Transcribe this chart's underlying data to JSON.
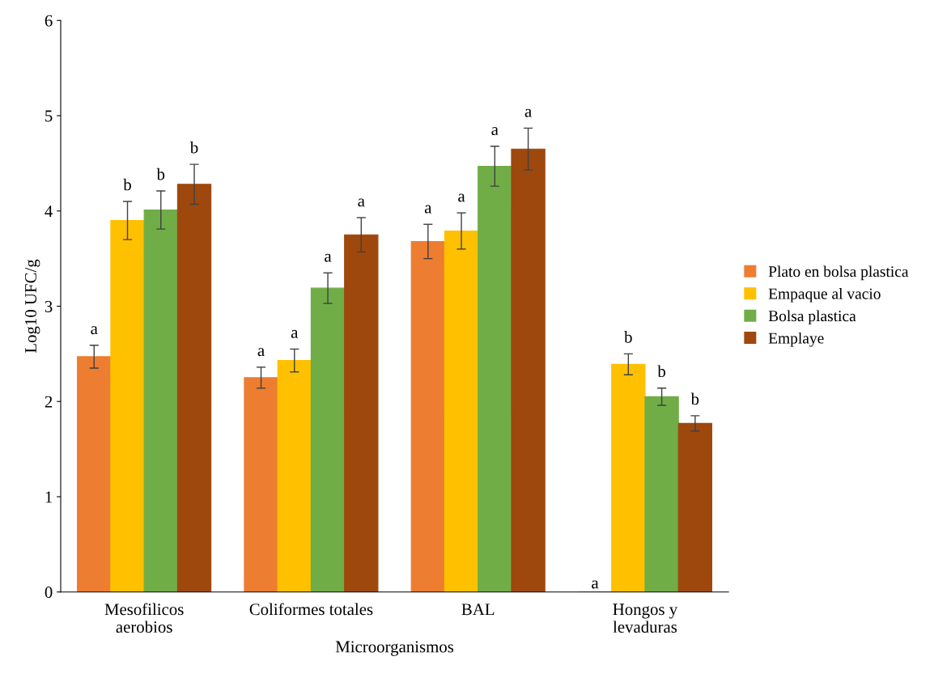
{
  "chart_data": {
    "type": "bar",
    "xlabel": "Microorganismos",
    "ylabel": "Log10 UFC/g",
    "categories": [
      "Mesofilicos\naerobios",
      "Coliformes totales",
      "BAL",
      "Hongos y\nlevaduras"
    ],
    "ylim": [
      0,
      6
    ],
    "yticks": [
      0,
      1,
      2,
      3,
      4,
      5,
      6
    ],
    "grid": false,
    "legend": "right",
    "series": [
      {
        "name": "Plato en bolsa plastica",
        "color": "#ed7d31",
        "values": [
          2.47,
          2.25,
          3.68,
          0
        ],
        "errors": [
          0.12,
          0.11,
          0.18,
          null
        ],
        "value_labels": [
          "a",
          "a",
          "a",
          "a"
        ]
      },
      {
        "name": "Empaque al vacio",
        "color": "#ffc000",
        "values": [
          3.9,
          2.43,
          3.79,
          2.39
        ],
        "errors": [
          0.2,
          0.12,
          0.19,
          0.11
        ],
        "value_labels": [
          "b",
          "a",
          "a",
          "b"
        ]
      },
      {
        "name": "Bolsa plastica",
        "color": "#70ad47",
        "values": [
          4.01,
          3.19,
          4.47,
          2.05
        ],
        "errors": [
          0.2,
          0.16,
          0.21,
          0.09
        ],
        "value_labels": [
          "b",
          "a",
          "a",
          "b"
        ]
      },
      {
        "name": "Emplaye",
        "color": "#9e480e",
        "values": [
          4.28,
          3.75,
          4.65,
          1.77
        ],
        "errors": [
          0.21,
          0.18,
          0.22,
          0.08
        ],
        "value_labels": [
          "b",
          "a",
          "a",
          "b"
        ]
      }
    ]
  }
}
